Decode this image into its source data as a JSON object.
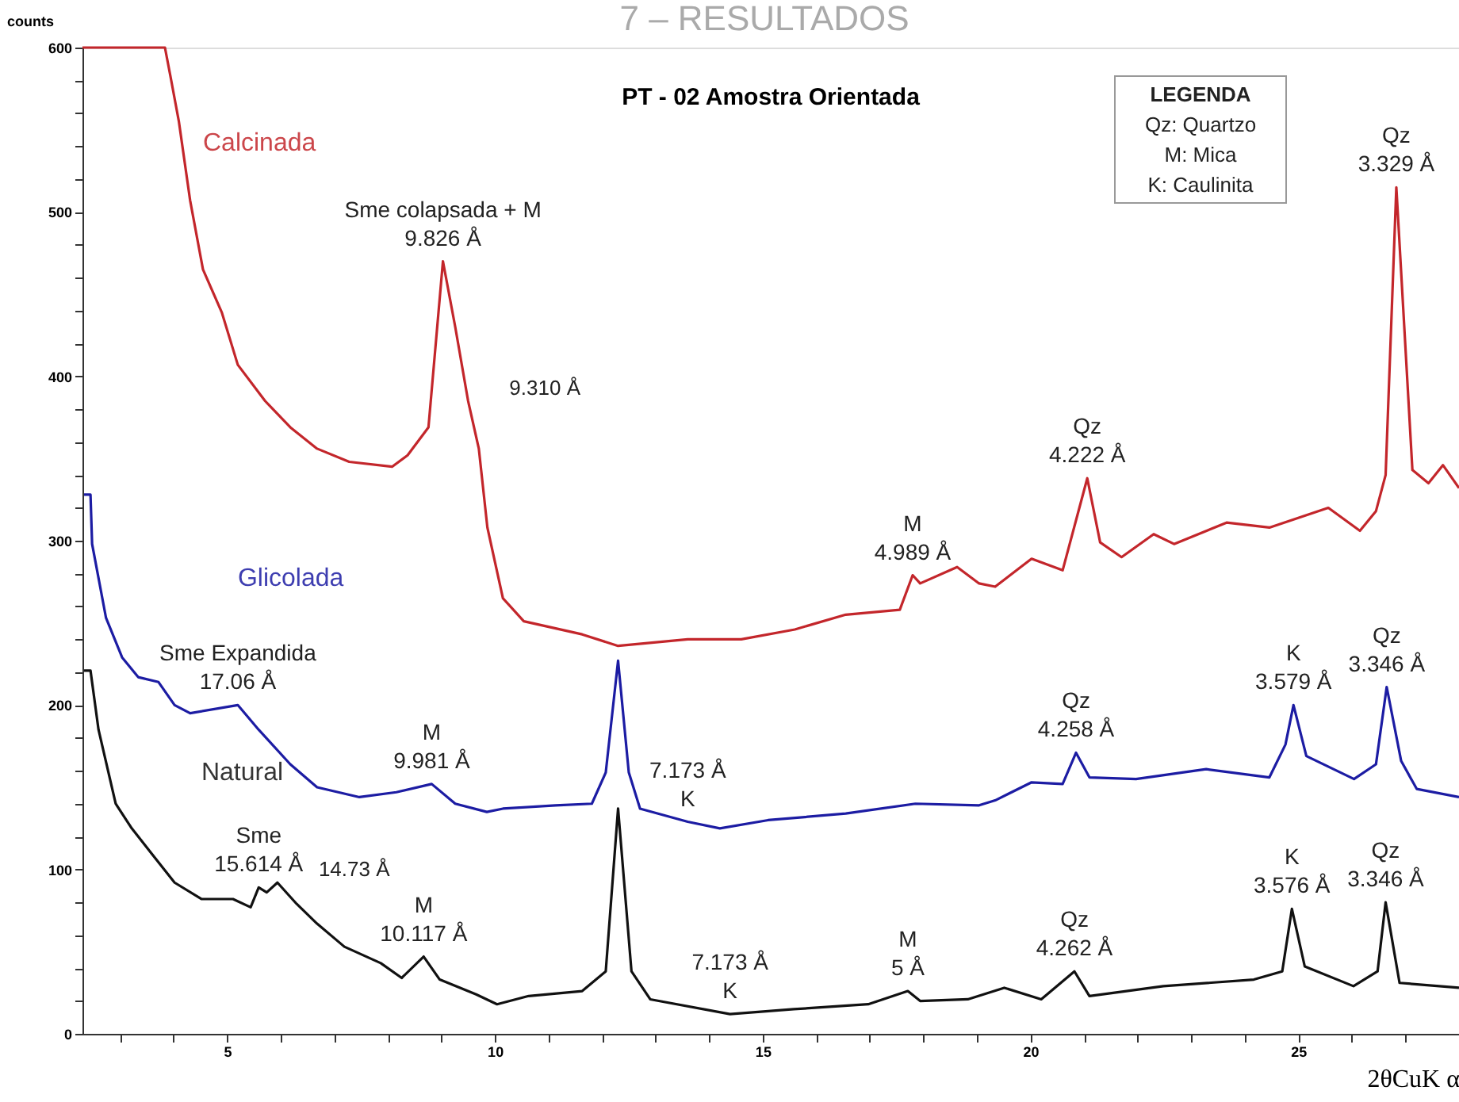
{
  "chart_data": {
    "type": "line",
    "title": "PT - 02 Amostra Orientada",
    "xlabel": "2θCuK α",
    "ylabel": "counts",
    "xlim": [
      2.3,
      28
    ],
    "ylim": [
      0,
      600
    ],
    "xticks": [
      {
        "value": 3,
        "label": null
      },
      {
        "value": 4,
        "label": null
      },
      5,
      {
        "value": 6,
        "label": null
      },
      {
        "value": 7,
        "label": null
      },
      {
        "value": 8,
        "label": null
      },
      {
        "value": 9,
        "label": null
      },
      10,
      {
        "value": 11,
        "label": null
      },
      {
        "value": 12,
        "label": null
      },
      {
        "value": 13,
        "label": null
      },
      {
        "value": 14,
        "label": null
      },
      15,
      {
        "value": 16,
        "label": null
      },
      {
        "value": 17,
        "label": null
      },
      {
        "value": 18,
        "label": null
      },
      {
        "value": 19,
        "label": null
      },
      20,
      {
        "value": 21,
        "label": null
      },
      {
        "value": 22,
        "label": null
      },
      {
        "value": 23,
        "label": null
      },
      {
        "value": 24,
        "label": null
      },
      25,
      {
        "value": 26,
        "label": null
      },
      {
        "value": 27,
        "label": null
      }
    ],
    "yticks": [
      0,
      {
        "value": 20,
        "label": null
      },
      {
        "value": 40,
        "label": null
      },
      {
        "value": 60,
        "label": null
      },
      {
        "value": 80,
        "label": null
      },
      100,
      {
        "value": 120,
        "label": null
      },
      {
        "value": 140,
        "label": null
      },
      {
        "value": 160,
        "label": null
      },
      {
        "value": 180,
        "label": null
      },
      200,
      {
        "value": 220,
        "label": null
      },
      {
        "value": 240,
        "label": null
      },
      {
        "value": 260,
        "label": null
      },
      {
        "value": 280,
        "label": null
      },
      300,
      {
        "value": 320,
        "label": null
      },
      {
        "value": 340,
        "label": null
      },
      {
        "value": 360,
        "label": null
      },
      {
        "value": 380,
        "label": null
      },
      400,
      {
        "value": 420,
        "label": null
      },
      {
        "value": 440,
        "label": null
      },
      {
        "value": 460,
        "label": null
      },
      {
        "value": 480,
        "label": null
      },
      500,
      {
        "value": 520,
        "label": null
      },
      {
        "value": 540,
        "label": null
      },
      {
        "value": 560,
        "label": null
      },
      {
        "value": 580,
        "label": null
      },
      600
    ],
    "grid": false,
    "legend": false,
    "marker": "none",
    "line_style": "solid",
    "series": [
      {
        "name": "Calcinada",
        "color": "#c3262b",
        "x": [
          2.3,
          3.84,
          3.94,
          4.1,
          4.31,
          4.55,
          4.9,
          5.2,
          5.71,
          6.18,
          6.68,
          7.28,
          8.08,
          8.37,
          8.76,
          9.03,
          9.26,
          9.5,
          9.7,
          9.86,
          10.15,
          10.54,
          11.63,
          12.3,
          13.6,
          14.6,
          15.6,
          16.55,
          17.56,
          17.8,
          17.94,
          18.63,
          19.04,
          19.34,
          20.02,
          20.6,
          21.06,
          21.3,
          21.7,
          22.3,
          22.68,
          23.66,
          24.46,
          25.56,
          26.15,
          26.45,
          26.63,
          26.83,
          27.13,
          27.43,
          27.7,
          28.0
        ],
        "values": [
          600,
          600,
          583,
          555,
          507,
          465,
          439,
          407,
          385,
          369,
          356,
          348,
          345,
          352,
          369,
          470,
          430,
          385,
          356,
          308,
          265,
          251,
          243,
          236,
          240,
          240,
          246,
          255,
          258,
          279,
          274,
          284,
          274,
          272,
          289,
          282,
          338,
          299,
          290,
          304,
          298,
          311,
          308,
          320,
          306,
          318,
          340,
          515,
          343,
          335,
          346,
          332
        ]
      },
      {
        "name": "Glicolada",
        "color": "#1c1ca3",
        "x": [
          2.33,
          2.45,
          2.48,
          2.74,
          3.04,
          3.34,
          3.72,
          4.02,
          4.31,
          5.2,
          5.59,
          6.18,
          6.68,
          7.47,
          8.16,
          8.82,
          9.26,
          9.85,
          10.15,
          11.13,
          11.81,
          12.07,
          12.3,
          12.5,
          12.71,
          13.6,
          14.2,
          15.1,
          16.55,
          17.85,
          19.04,
          19.34,
          20.02,
          20.6,
          20.85,
          21.1,
          21.97,
          23.28,
          24.46,
          24.76,
          24.91,
          25.15,
          26.04,
          26.45,
          26.65,
          26.92,
          27.21,
          28.0
        ],
        "values": [
          328,
          328,
          298,
          253,
          229,
          217,
          214,
          200,
          195,
          200,
          185,
          164,
          150,
          144,
          147,
          152,
          140,
          135,
          137,
          139,
          140,
          159,
          227,
          159,
          137,
          129,
          125,
          130,
          134,
          140,
          139,
          142,
          153,
          152,
          171,
          156,
          155,
          161,
          156,
          176,
          200,
          169,
          155,
          164,
          211,
          166,
          149,
          144
        ]
      },
      {
        "name": "Natural",
        "color": "#111111",
        "x": [
          2.33,
          2.45,
          2.6,
          2.92,
          3.22,
          3.63,
          4.02,
          4.52,
          5.11,
          5.44,
          5.59,
          5.74,
          5.94,
          6.3,
          6.68,
          7.19,
          7.87,
          8.26,
          8.67,
          8.97,
          9.65,
          10.04,
          10.63,
          11.63,
          12.07,
          12.3,
          12.55,
          12.9,
          14.39,
          15.58,
          16.97,
          17.71,
          17.94,
          18.83,
          19.51,
          20.2,
          20.82,
          21.1,
          22.48,
          24.17,
          24.7,
          24.88,
          25.12,
          26.03,
          26.48,
          26.63,
          26.89,
          28.0
        ],
        "values": [
          221,
          221,
          185,
          140,
          125,
          108,
          92,
          82,
          82,
          77,
          89,
          86,
          92,
          79,
          67,
          53,
          43,
          34,
          47,
          33,
          24,
          18,
          23,
          26,
          38,
          137,
          38,
          21,
          12,
          15,
          18,
          26,
          20,
          21,
          28,
          21,
          38,
          23,
          29,
          33,
          38,
          76,
          41,
          29,
          38,
          80,
          31,
          28
        ]
      }
    ],
    "annotations": [
      "7 – RESULTADOS",
      "LEGENDA",
      "Qz: Quartzo",
      "M: Mica",
      "K: Caulinita",
      {
        "text": "Sme colapsada + M",
        "x": 9.03,
        "y": 470
      },
      {
        "text": "9.826 Å",
        "x": 9.03,
        "y": 470
      },
      {
        "text": "9.310 Å",
        "x": 9.5,
        "y": 385
      },
      {
        "text": "M",
        "x": 17.8,
        "y": 279
      },
      {
        "text": "4.989 Å",
        "x": 17.8,
        "y": 279
      },
      {
        "text": "Qz",
        "x": 21.06,
        "y": 338
      },
      {
        "text": "4.222 Å",
        "x": 21.06,
        "y": 338
      },
      {
        "text": "Qz",
        "x": 26.83,
        "y": 515
      },
      {
        "text": "3.329 Å",
        "x": 26.83,
        "y": 515
      },
      {
        "text": "Sme Expandida",
        "x": 5.2,
        "y": 200
      },
      {
        "text": "17.06 Å",
        "x": 5.2,
        "y": 200
      },
      {
        "text": "M",
        "x": 8.82,
        "y": 152
      },
      {
        "text": "9.981 Å",
        "x": 8.82,
        "y": 152
      },
      {
        "text": "7.173 Å",
        "x": 13.6,
        "y": 129
      },
      {
        "text": "K",
        "x": 13.6,
        "y": 129
      },
      {
        "text": "Qz",
        "x": 20.85,
        "y": 171
      },
      {
        "text": "4.258 Å",
        "x": 20.85,
        "y": 171
      },
      {
        "text": "K",
        "x": 24.91,
        "y": 200
      },
      {
        "text": "3.579 Å",
        "x": 24.91,
        "y": 200
      },
      {
        "text": "Qz",
        "x": 26.65,
        "y": 211
      },
      {
        "text": "3.346 Å",
        "x": 26.65,
        "y": 211
      },
      {
        "text": "Sme",
        "x": 5.59,
        "y": 89
      },
      {
        "text": "15.614 Å",
        "x": 5.59,
        "y": 89
      },
      {
        "text": "14.73 Å",
        "x": 5.94,
        "y": 92
      },
      {
        "text": "M",
        "x": 8.67,
        "y": 47
      },
      {
        "text": "10.117 Å",
        "x": 8.67,
        "y": 47
      },
      {
        "text": "7.173 Å",
        "x": 14.39,
        "y": 12
      },
      {
        "text": "K",
        "x": 14.39,
        "y": 12
      },
      {
        "text": "M",
        "x": 17.71,
        "y": 26
      },
      {
        "text": "5 Å",
        "x": 17.71,
        "y": 26
      },
      {
        "text": "Qz",
        "x": 20.82,
        "y": 38
      },
      {
        "text": "4.262 Å",
        "x": 20.82,
        "y": 38
      },
      {
        "text": "K",
        "x": 24.88,
        "y": 76
      },
      {
        "text": "3.576 Å",
        "x": 24.88,
        "y": 76
      },
      {
        "text": "Qz",
        "x": 26.63,
        "y": 80
      },
      {
        "text": "3.346 Å",
        "x": 26.63,
        "y": 80
      }
    ]
  }
}
